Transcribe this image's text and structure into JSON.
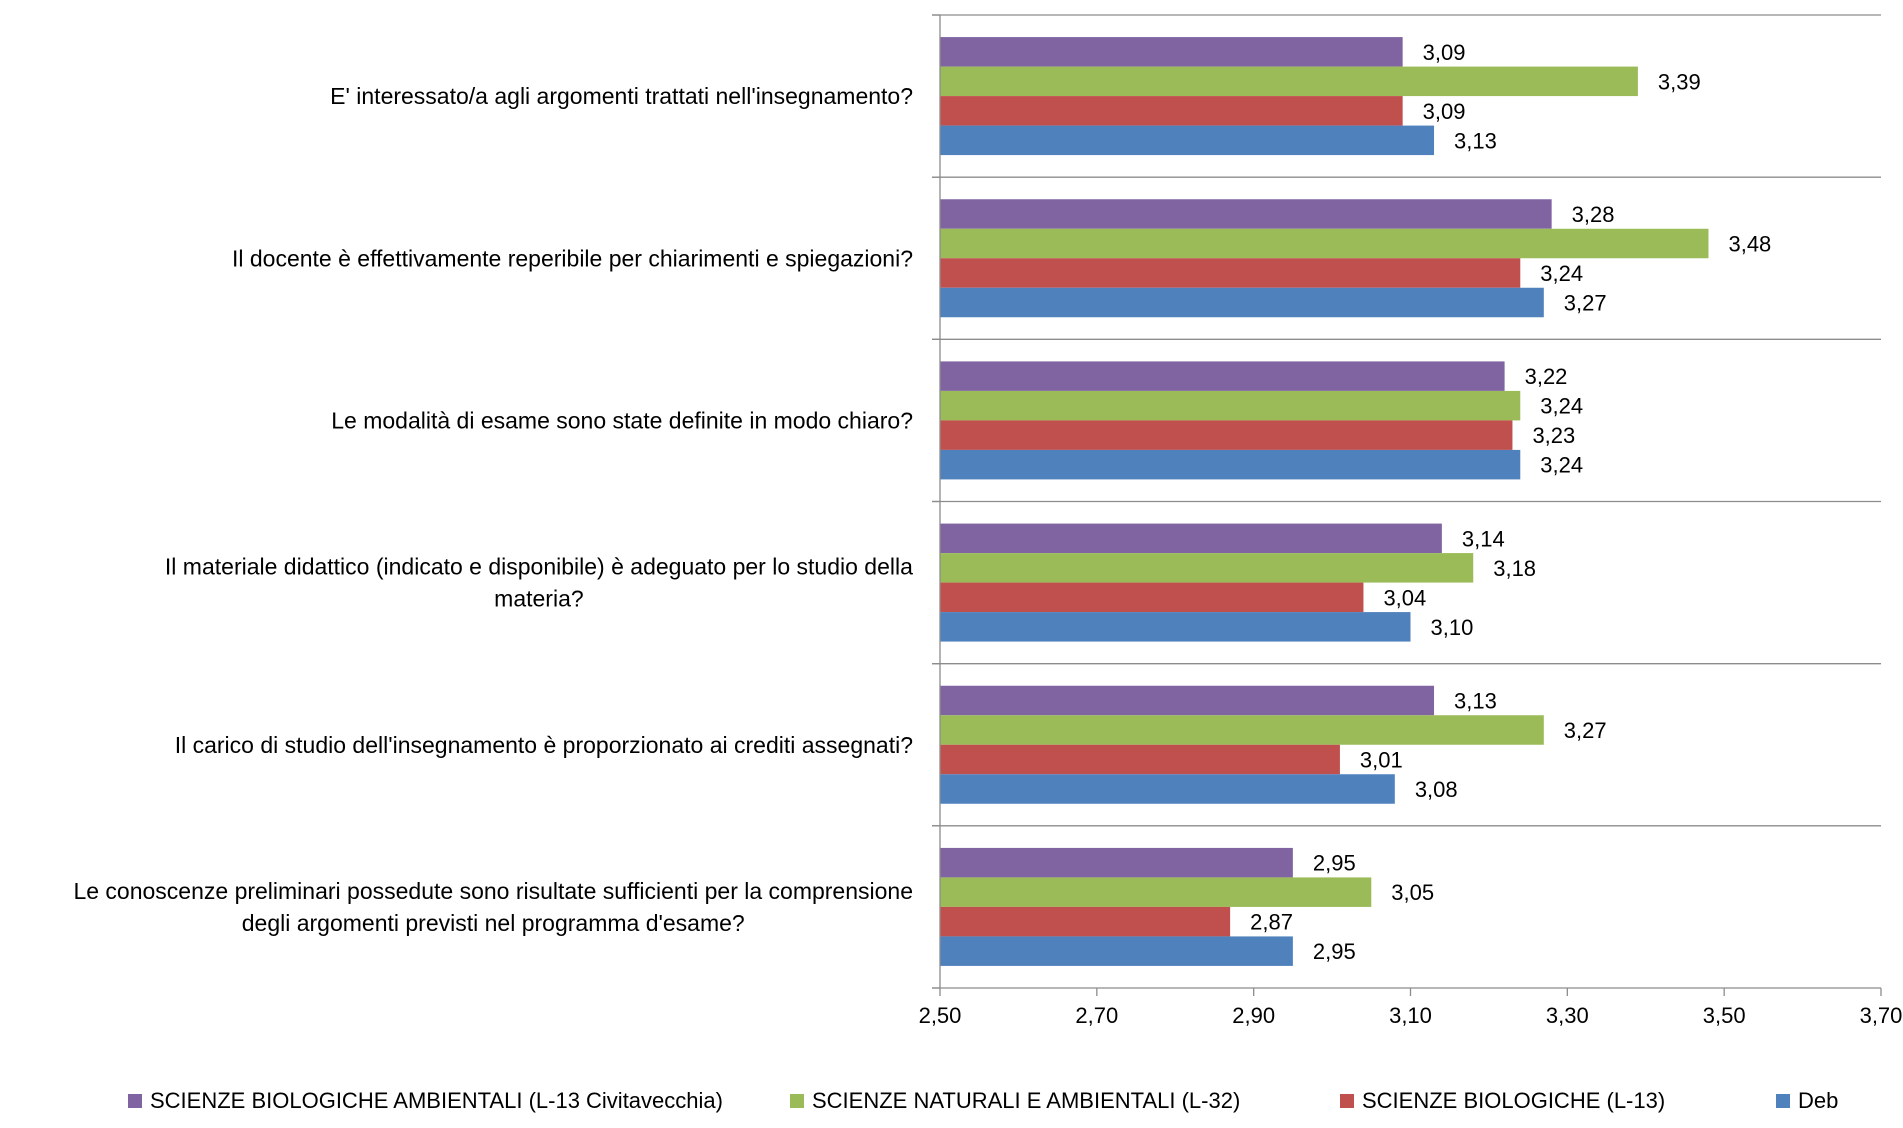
{
  "chart_data": {
    "type": "bar",
    "orientation": "horizontal",
    "categories": [
      [
        "E' interessato/a agli argomenti trattati nell'insegnamento?"
      ],
      [
        "Il docente è effettivamente reperibile per chiarimenti e spiegazioni?"
      ],
      [
        "Le modalità di esame sono state definite in modo chiaro?"
      ],
      [
        "Il materiale didattico (indicato e disponibile) è adeguato per lo studio della",
        "materia?"
      ],
      [
        "Il carico di studio dell'insegnamento è proporzionato ai crediti assegnati?"
      ],
      [
        "Le conoscenze preliminari possedute sono risultate sufficienti per la comprensione",
        "degli argomenti previsti nel programma d'esame?"
      ]
    ],
    "series": [
      {
        "name": "SCIENZE BIOLOGICHE AMBIENTALI (L-13 Civitavecchia)",
        "color": "#8064A2",
        "values": [
          3.09,
          3.28,
          3.22,
          3.14,
          3.13,
          2.95
        ],
        "labels": [
          "3,09",
          "3,28",
          "3,22",
          "3,14",
          "3,13",
          "2,95"
        ]
      },
      {
        "name": "SCIENZE NATURALI E AMBIENTALI (L-32)",
        "color": "#9BBB59",
        "values": [
          3.39,
          3.48,
          3.24,
          3.18,
          3.27,
          3.05
        ],
        "labels": [
          "3,39",
          "3,48",
          "3,24",
          "3,18",
          "3,27",
          "3,05"
        ]
      },
      {
        "name": "SCIENZE BIOLOGICHE (L-13)",
        "color": "#C0504D",
        "values": [
          3.09,
          3.24,
          3.23,
          3.04,
          3.01,
          2.87
        ],
        "labels": [
          "3,09",
          "3,24",
          "3,23",
          "3,04",
          "3,01",
          "2,87"
        ]
      },
      {
        "name": "Deb",
        "color": "#4F81BD",
        "values": [
          3.13,
          3.27,
          3.24,
          3.1,
          3.08,
          2.95
        ],
        "labels": [
          "3,13",
          "3,27",
          "3,24",
          "3,10",
          "3,08",
          "2,95"
        ]
      }
    ],
    "xlim": [
      2.5,
      3.7
    ],
    "xticks": [
      2.5,
      2.7,
      2.9,
      3.1,
      3.3,
      3.5,
      3.7
    ],
    "xtick_labels": [
      "2,50",
      "2,70",
      "2,90",
      "3,10",
      "3,30",
      "3,50",
      "3,70"
    ],
    "title": "",
    "xlabel": "",
    "ylabel": "",
    "grid": "horizontal separators between categories",
    "legend_position": "bottom"
  }
}
